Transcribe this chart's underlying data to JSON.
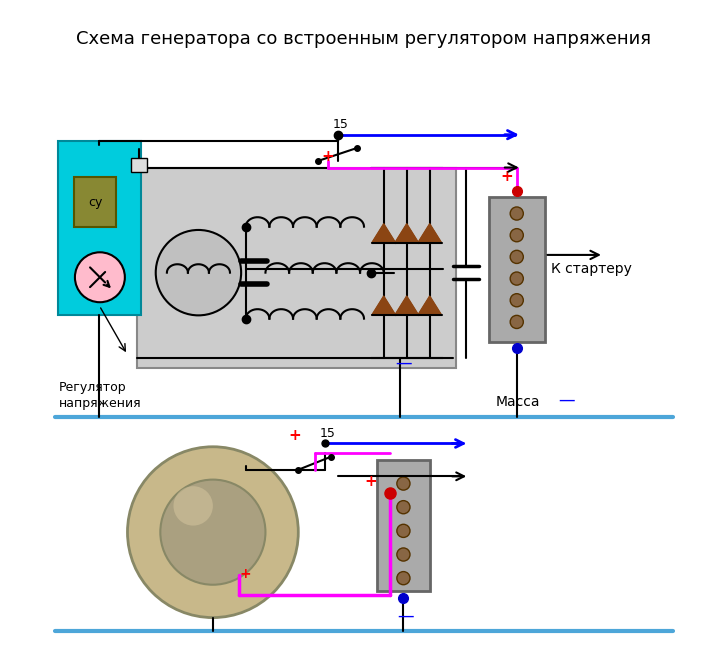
{
  "title": "Схема генератора со встроенным регулятором напряжения",
  "title_fontsize": 13,
  "bg_color": "#ffffff",
  "ground_line_color": "#4da6d9",
  "mass_text": "Масса",
  "k_starter_text": "К стартеру",
  "reg_text1": "Регулятор",
  "reg_text2": "напряжения",
  "label_15": "15",
  "pink_line_color": "#ff00ff",
  "blue_arrow_color": "#0000ff",
  "diode_color": "#8B4513"
}
